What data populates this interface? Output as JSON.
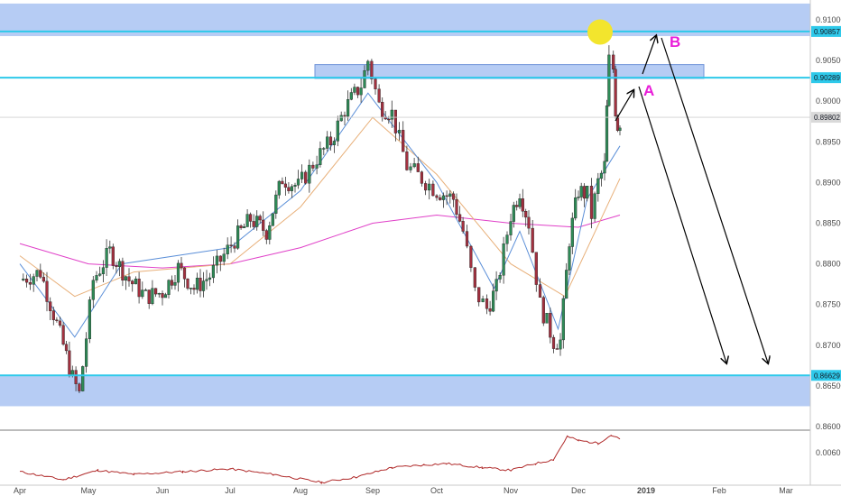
{
  "colors": {
    "zone_fill": "#a9c3f2",
    "zone_stroke": "#6f93d9",
    "level_line": "#2ec9ea",
    "level_tag": "#2ec9ea",
    "bull_candle": "#2e8b57",
    "bear_candle": "#a3303f",
    "wick": "#333333",
    "ma_fast": "#5b8fd8",
    "ma_mid": "#e8b07a",
    "ma_slow": "#e040c8",
    "marker": "#f3e52d",
    "annotation": "#e91ed9",
    "arrow": "#000000",
    "indicator": "#b02a2a"
  },
  "chart_data": [
    {
      "type": "candlestick",
      "instrument": "",
      "ylim": [
        0.86,
        0.91
      ],
      "y_ticks": [
        "0.91000",
        "0.90500",
        "0.90000",
        "0.89500",
        "0.89000",
        "0.88500",
        "0.88000",
        "0.87500",
        "0.87000",
        "0.86500",
        "0.86000"
      ],
      "x_ticks": [
        "Apr",
        "May",
        "Jun",
        "Jul",
        "Aug",
        "Sep",
        "Oct",
        "Nov",
        "Dec",
        "2019",
        "Feb",
        "Mar"
      ],
      "x_ticks_bold": [
        "2019"
      ],
      "series_anchors": [
        {
          "date": "Apr 1",
          "price": 0.878
        },
        {
          "date": "Apr 10",
          "price": 0.879
        },
        {
          "date": "Apr 20",
          "price": 0.87
        },
        {
          "date": "Apr 24",
          "price": 0.866
        },
        {
          "date": "Apr 27",
          "price": 0.864
        },
        {
          "date": "May 3",
          "price": 0.878
        },
        {
          "date": "May 10",
          "price": 0.8815
        },
        {
          "date": "May 18",
          "price": 0.878
        },
        {
          "date": "May 25",
          "price": 0.876
        },
        {
          "date": "Jun 1",
          "price": 0.8765
        },
        {
          "date": "Jun 8",
          "price": 0.8795
        },
        {
          "date": "Jun 15",
          "price": 0.877
        },
        {
          "date": "Jun 22",
          "price": 0.8785
        },
        {
          "date": "Jul 3",
          "price": 0.883
        },
        {
          "date": "Jul 10",
          "price": 0.8855
        },
        {
          "date": "Jul 17",
          "price": 0.884
        },
        {
          "date": "Jul 24",
          "price": 0.8905
        },
        {
          "date": "Jul 31",
          "price": 0.8895
        },
        {
          "date": "Aug 8",
          "price": 0.893
        },
        {
          "date": "Aug 14",
          "price": 0.895
        },
        {
          "date": "Aug 20",
          "price": 0.899
        },
        {
          "date": "Aug 27",
          "price": 0.902
        },
        {
          "date": "Aug 30",
          "price": 0.905
        },
        {
          "date": "Sep 4",
          "price": 0.8995
        },
        {
          "date": "Sep 10",
          "price": 0.8985
        },
        {
          "date": "Sep 17",
          "price": 0.892
        },
        {
          "date": "Sep 24",
          "price": 0.8905
        },
        {
          "date": "Oct 1",
          "price": 0.889
        },
        {
          "date": "Oct 8",
          "price": 0.888
        },
        {
          "date": "Oct 12",
          "price": 0.884
        },
        {
          "date": "Oct 17",
          "price": 0.8765
        },
        {
          "date": "Oct 22",
          "price": 0.8745
        },
        {
          "date": "Oct 26",
          "price": 0.877
        },
        {
          "date": "Nov 1",
          "price": 0.886
        },
        {
          "date": "Nov 5",
          "price": 0.889
        },
        {
          "date": "Nov 9",
          "price": 0.885
        },
        {
          "date": "Nov 14",
          "price": 0.875
        },
        {
          "date": "Nov 20",
          "price": 0.8705
        },
        {
          "date": "Nov 23",
          "price": 0.8705
        },
        {
          "date": "Nov 27",
          "price": 0.883
        },
        {
          "date": "Dec 1",
          "price": 0.889
        },
        {
          "date": "Dec 5",
          "price": 0.8885
        },
        {
          "date": "Dec 7",
          "price": 0.886
        },
        {
          "date": "Dec 10",
          "price": 0.89
        },
        {
          "date": "Dec 13",
          "price": 0.892
        },
        {
          "date": "Dec 14",
          "price": 0.899
        },
        {
          "date": "Dec 15",
          "price": 0.905
        },
        {
          "date": "Dec 17",
          "price": 0.904
        },
        {
          "date": "Dec 18",
          "price": 0.899
        },
        {
          "date": "Dec 19",
          "price": 0.897
        },
        {
          "date": "Dec 20",
          "price": 0.8975
        }
      ],
      "moving_averages": [
        {
          "color_key": "ma_slow",
          "values_by_date": [
            {
              "date": "Apr 1",
              "price": 0.8825
            },
            {
              "date": "May 1",
              "price": 0.88
            },
            {
              "date": "Jun 1",
              "price": 0.8795
            },
            {
              "date": "Jul 1",
              "price": 0.88
            },
            {
              "date": "Aug 1",
              "price": 0.882
            },
            {
              "date": "Sep 1",
              "price": 0.885
            },
            {
              "date": "Oct 1",
              "price": 0.886
            },
            {
              "date": "Nov 1",
              "price": 0.885
            },
            {
              "date": "Dec 1",
              "price": 0.8845
            },
            {
              "date": "Dec 20",
              "price": 0.886
            }
          ]
        },
        {
          "color_key": "ma_mid",
          "values_by_date": [
            {
              "date": "Apr 1",
              "price": 0.881
            },
            {
              "date": "Apr 25",
              "price": 0.876
            },
            {
              "date": "May 20",
              "price": 0.879
            },
            {
              "date": "Jul 1",
              "price": 0.88
            },
            {
              "date": "Aug 1",
              "price": 0.887
            },
            {
              "date": "Sep 1",
              "price": 0.898
            },
            {
              "date": "Oct 1",
              "price": 0.891
            },
            {
              "date": "Nov 1",
              "price": 0.88
            },
            {
              "date": "Nov 25",
              "price": 0.876
            },
            {
              "date": "Dec 20",
              "price": 0.8905
            }
          ]
        },
        {
          "color_key": "ma_fast",
          "values_by_date": [
            {
              "date": "Apr 1",
              "price": 0.88
            },
            {
              "date": "Apr 25",
              "price": 0.871
            },
            {
              "date": "May 15",
              "price": 0.88
            },
            {
              "date": "Jul 1",
              "price": 0.882
            },
            {
              "date": "Aug 1",
              "price": 0.889
            },
            {
              "date": "Aug 30",
              "price": 0.901
            },
            {
              "date": "Oct 1",
              "price": 0.89
            },
            {
              "date": "Oct 25",
              "price": 0.877
            },
            {
              "date": "Nov 5",
              "price": 0.884
            },
            {
              "date": "Nov 22",
              "price": 0.872
            },
            {
              "date": "Dec 5",
              "price": 0.888
            },
            {
              "date": "Dec 20",
              "price": 0.8945
            }
          ]
        }
      ],
      "zones": [
        {
          "from": 0.908,
          "to": 0.912
        },
        {
          "from": 0.9028,
          "to": 0.9045
        },
        {
          "from": 0.8625,
          "to": 0.8662
        }
      ],
      "levels": [
        {
          "price": 0.90857,
          "label": "0.90857"
        },
        {
          "price": 0.90289,
          "label": "0.90289"
        },
        {
          "price": 0.86629,
          "label": "0.86629"
        }
      ],
      "last_price": {
        "price": 0.89802,
        "label": "0.89802"
      },
      "annotations": {
        "label_a": "A",
        "label_b": "B"
      },
      "projected_path": {
        "start": {
          "date": "Dec 20",
          "price": 0.898
        },
        "point_a": {
          "date": "Dec 28",
          "price": 0.9022
        },
        "point_b": {
          "date": "Jan 7",
          "price": 0.9085
        },
        "target_a": {
          "date": "Feb 5",
          "price": 0.8665
        },
        "target_b": {
          "date": "Feb 28",
          "price": 0.8665
        }
      }
    },
    {
      "type": "line",
      "y_ticks": [
        "0.0060"
      ],
      "series": [
        {
          "values_by_date": [
            {
              "date": "Apr 1",
              "value": 0.0053
            },
            {
              "date": "Apr 20",
              "value": 0.005
            },
            {
              "date": "May 5",
              "value": 0.00535
            },
            {
              "date": "May 20",
              "value": 0.0052
            },
            {
              "date": "Jun 10",
              "value": 0.0053
            },
            {
              "date": "Jul 1",
              "value": 0.0054
            },
            {
              "date": "Jul 20",
              "value": 0.0052
            },
            {
              "date": "Aug 10",
              "value": 0.0049
            },
            {
              "date": "Aug 25",
              "value": 0.0051
            },
            {
              "date": "Sep 10",
              "value": 0.00545
            },
            {
              "date": "Sep 25",
              "value": 0.00555
            },
            {
              "date": "Oct 5",
              "value": 0.0056
            },
            {
              "date": "Oct 20",
              "value": 0.00545
            },
            {
              "date": "Nov 1",
              "value": 0.00535
            },
            {
              "date": "Nov 12",
              "value": 0.0056
            },
            {
              "date": "Nov 20",
              "value": 0.00575
            },
            {
              "date": "Nov 26",
              "value": 0.0066
            },
            {
              "date": "Dec 1",
              "value": 0.00645
            },
            {
              "date": "Dec 10",
              "value": 0.00635
            },
            {
              "date": "Dec 16",
              "value": 0.00665
            },
            {
              "date": "Dec 20",
              "value": 0.0065
            }
          ]
        }
      ]
    }
  ]
}
